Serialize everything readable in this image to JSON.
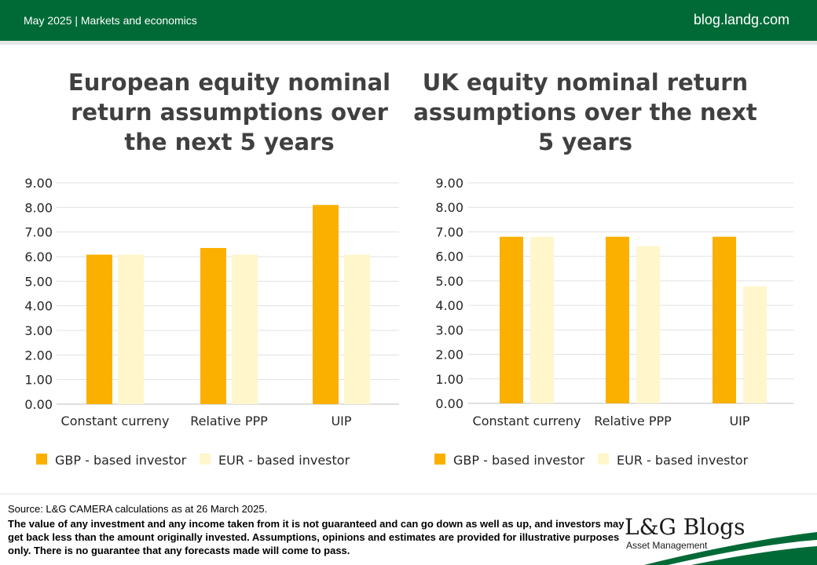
{
  "header": {
    "left_text": "May 2025 | Markets and economics",
    "site": "blog.landg.com"
  },
  "colors": {
    "header_green": "#006a37",
    "gbp_bar": "#fbb000",
    "eur_bar": "#fff6cc"
  },
  "chart_data": [
    {
      "type": "bar",
      "title": "European equity nominal return assumptions over the next 5 years",
      "categories": [
        "Constant curreny",
        "Relative PPP",
        "UIP"
      ],
      "series": [
        {
          "name": "GBP - based investor",
          "values": [
            6.08,
            6.35,
            8.1
          ]
        },
        {
          "name": "EUR - based investor",
          "values": [
            6.08,
            6.08,
            6.08
          ]
        }
      ],
      "ylim": [
        0,
        9
      ],
      "yticks": [
        "0.00",
        "1.00",
        "2.00",
        "3.00",
        "4.00",
        "5.00",
        "6.00",
        "7.00",
        "8.00",
        "9.00"
      ],
      "grid": true,
      "legend": "bottom"
    },
    {
      "type": "bar",
      "title": "UK equity nominal return assumptions over the next 5 years",
      "categories": [
        "Constant curreny",
        "Relative PPP",
        "UIP"
      ],
      "series": [
        {
          "name": "GBP - based investor",
          "values": [
            6.8,
            6.8,
            6.8
          ]
        },
        {
          "name": "EUR - based investor",
          "values": [
            6.8,
            6.42,
            4.78
          ]
        }
      ],
      "ylim": [
        0,
        9
      ],
      "yticks": [
        "0.00",
        "1.00",
        "2.00",
        "3.00",
        "4.00",
        "5.00",
        "6.00",
        "7.00",
        "8.00",
        "9.00"
      ],
      "grid": true,
      "legend": "bottom"
    }
  ],
  "footer": {
    "source": "Source: L&G CAMERA calculations  as at 26 March 2025.",
    "disclaimer": "The value of any investment and any income taken from it is not guaranteed and can go down as well as up, and investors may get back less than the amount originally invested. Assumptions, opinions and estimates are provided for illustrative purposes only. There is no guarantee that any forecasts made will come to pass.",
    "logo": "L&G Blogs",
    "logo_sub": "Asset Management"
  }
}
